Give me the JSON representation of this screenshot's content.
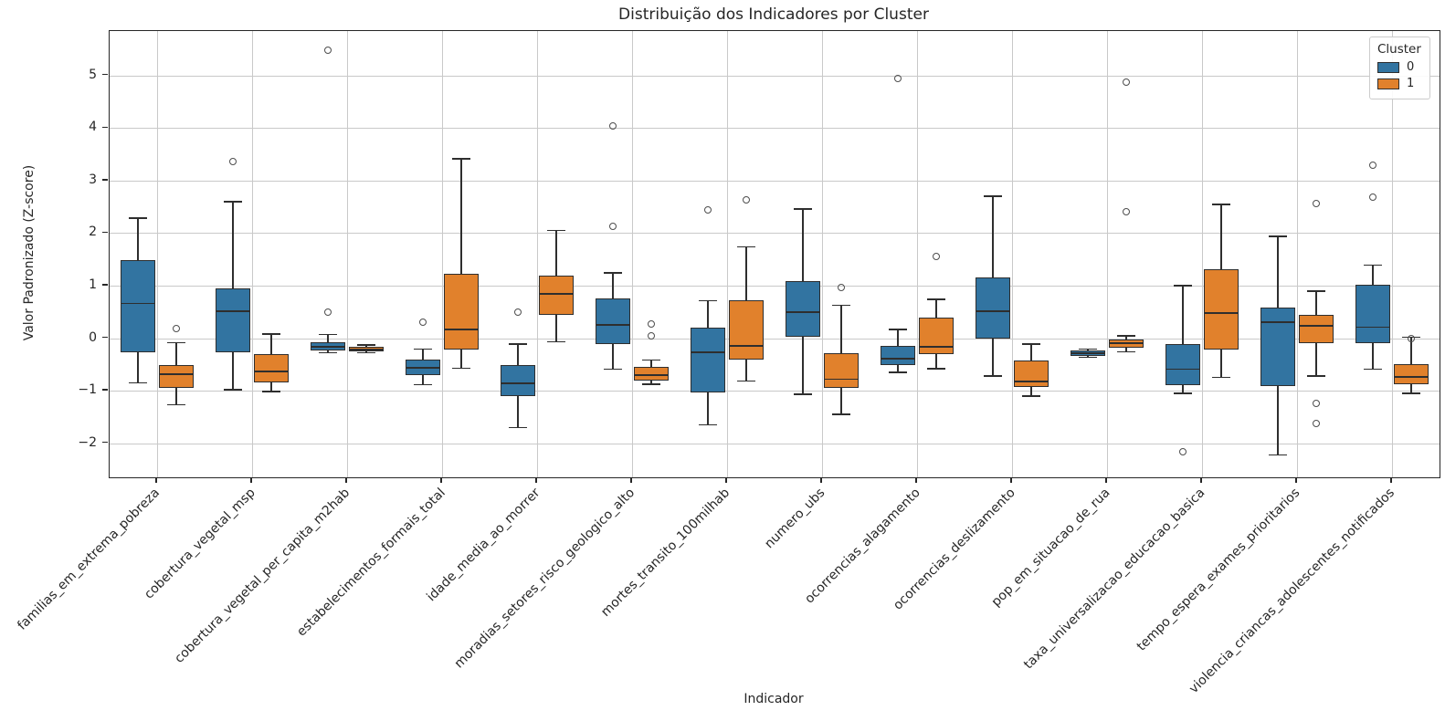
{
  "figure": {
    "background": "#ffffff"
  },
  "chart_data": {
    "type": "boxplot",
    "title": "Distribuição dos Indicadores por Cluster",
    "xlabel": "Indicador",
    "ylabel": "Valor Padronizado (Z-score)",
    "ylim": [
      -2.65,
      5.85
    ],
    "yticks": [
      -2,
      -1,
      0,
      1,
      2,
      3,
      4,
      5
    ],
    "grid": true,
    "legend": {
      "title": "Cluster",
      "position": "upper right",
      "entries": [
        {
          "label": "0",
          "color": "#3274a1"
        },
        {
          "label": "1",
          "color": "#e1812c"
        }
      ]
    },
    "colors": {
      "cluster0": "#3274a1",
      "cluster1": "#e1812c",
      "box_edge": "#2e2e2e",
      "grid": "#c9c9c9",
      "outlier_edge": "#4d4d4d"
    },
    "categories": [
      "familias_em_extrema_pobreza",
      "cobertura_vegetal_msp",
      "cobertura_vegetal_per_capita_m2hab",
      "estabelecimentos_formais_total",
      "idade_media_ao_morrer",
      "moradias_setores_risco_geologico_alto",
      "mortes_transito_100milhab",
      "numero_ubs",
      "ocorrencias_alagamento",
      "ocorrencias_deslizamento",
      "pop_em_situacao_de_rua",
      "taxa_universalizacao_educacao_basica",
      "tempo_espera_exames_prioritarios",
      "violencia_criancas_adolescentes_notificados"
    ],
    "series": [
      {
        "name": "0",
        "color": "#3274a1",
        "boxes": [
          {
            "whisker_low": -0.85,
            "q1": -0.27,
            "median": 0.66,
            "q3": 1.48,
            "whisker_high": 2.29,
            "outliers": []
          },
          {
            "whisker_low": -0.98,
            "q1": -0.26,
            "median": 0.52,
            "q3": 0.94,
            "whisker_high": 2.6,
            "outliers": [
              3.36
            ]
          },
          {
            "whisker_low": -0.28,
            "q1": -0.24,
            "median": -0.16,
            "q3": -0.08,
            "whisker_high": 0.07,
            "outliers": [
              5.48,
              0.5
            ]
          },
          {
            "whisker_low": -0.89,
            "q1": -0.7,
            "median": -0.56,
            "q3": -0.4,
            "whisker_high": -0.21,
            "outliers": [
              0.31
            ]
          },
          {
            "whisker_low": -1.7,
            "q1": -1.11,
            "median": -0.86,
            "q3": -0.52,
            "whisker_high": -0.11,
            "outliers": [
              0.5
            ]
          },
          {
            "whisker_low": -0.59,
            "q1": -0.11,
            "median": 0.25,
            "q3": 0.76,
            "whisker_high": 1.24,
            "outliers": [
              4.05,
              2.13
            ]
          },
          {
            "whisker_low": -1.65,
            "q1": -1.04,
            "median": -0.27,
            "q3": 0.2,
            "whisker_high": 0.71,
            "outliers": [
              2.44
            ]
          },
          {
            "whisker_low": -1.07,
            "q1": 0.02,
            "median": 0.5,
            "q3": 1.08,
            "whisker_high": 2.46,
            "outliers": []
          },
          {
            "whisker_low": -0.65,
            "q1": -0.52,
            "median": -0.39,
            "q3": -0.14,
            "whisker_high": 0.17,
            "outliers": [
              4.94
            ]
          },
          {
            "whisker_low": -0.72,
            "q1": -0.01,
            "median": 0.52,
            "q3": 1.15,
            "whisker_high": 2.7,
            "outliers": []
          },
          {
            "whisker_low": -0.36,
            "q1": -0.34,
            "median": -0.29,
            "q3": -0.24,
            "whisker_high": -0.21,
            "outliers": []
          },
          {
            "whisker_low": -1.05,
            "q1": -0.9,
            "median": -0.59,
            "q3": -0.11,
            "whisker_high": 1.0,
            "outliers": [
              -2.16
            ]
          },
          {
            "whisker_low": -2.22,
            "q1": -0.92,
            "median": 0.31,
            "q3": 0.58,
            "whisker_high": 1.94,
            "outliers": []
          },
          {
            "whisker_low": -0.59,
            "q1": -0.1,
            "median": 0.21,
            "q3": 1.02,
            "whisker_high": 1.39,
            "outliers": [
              3.3,
              2.69
            ]
          }
        ]
      },
      {
        "name": "1",
        "color": "#e1812c",
        "boxes": [
          {
            "whisker_low": -1.27,
            "q1": -0.95,
            "median": -0.68,
            "q3": -0.52,
            "whisker_high": -0.09,
            "outliers": [
              0.19
            ]
          },
          {
            "whisker_low": -1.02,
            "q1": -0.84,
            "median": -0.63,
            "q3": -0.31,
            "whisker_high": 0.08,
            "outliers": []
          },
          {
            "whisker_low": -0.28,
            "q1": -0.25,
            "median": -0.21,
            "q3": -0.16,
            "whisker_high": -0.13,
            "outliers": []
          },
          {
            "whisker_low": -0.57,
            "q1": -0.22,
            "median": 0.16,
            "q3": 1.23,
            "whisker_high": 3.42,
            "outliers": []
          },
          {
            "whisker_low": -0.07,
            "q1": 0.44,
            "median": 0.85,
            "q3": 1.2,
            "whisker_high": 2.05,
            "outliers": []
          },
          {
            "whisker_low": -0.88,
            "q1": -0.81,
            "median": -0.71,
            "q3": -0.54,
            "whisker_high": -0.42,
            "outliers": [
              0.27,
              0.05
            ]
          },
          {
            "whisker_low": -0.82,
            "q1": -0.4,
            "median": -0.15,
            "q3": 0.72,
            "whisker_high": 1.74,
            "outliers": [
              2.63
            ]
          },
          {
            "whisker_low": -1.45,
            "q1": -0.94,
            "median": -0.78,
            "q3": -0.28,
            "whisker_high": 0.63,
            "outliers": [
              0.97
            ]
          },
          {
            "whisker_low": -0.58,
            "q1": -0.3,
            "median": -0.17,
            "q3": 0.39,
            "whisker_high": 0.74,
            "outliers": [
              1.56
            ]
          },
          {
            "whisker_low": -1.1,
            "q1": -0.93,
            "median": -0.83,
            "q3": -0.43,
            "whisker_high": -0.11,
            "outliers": []
          },
          {
            "whisker_low": -0.26,
            "q1": -0.19,
            "median": -0.1,
            "q3": -0.02,
            "whisker_high": 0.04,
            "outliers": [
              4.88,
              2.41
            ]
          },
          {
            "whisker_low": -0.75,
            "q1": -0.21,
            "median": 0.48,
            "q3": 1.31,
            "whisker_high": 2.55,
            "outliers": []
          },
          {
            "whisker_low": -0.72,
            "q1": -0.1,
            "median": 0.23,
            "q3": 0.45,
            "whisker_high": 0.9,
            "outliers": [
              2.57,
              -1.25,
              -1.63
            ]
          },
          {
            "whisker_low": -1.05,
            "q1": -0.88,
            "median": -0.74,
            "q3": -0.5,
            "whisker_high": 0.02,
            "outliers": [
              -0.01
            ]
          }
        ]
      }
    ]
  }
}
